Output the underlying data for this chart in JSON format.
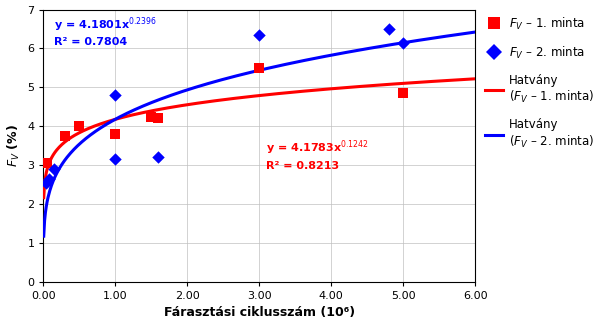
{
  "red_x": [
    0.05,
    0.3,
    0.5,
    1.0,
    1.5,
    1.6,
    3.0,
    5.0
  ],
  "red_y": [
    3.05,
    3.75,
    4.0,
    3.8,
    4.25,
    4.2,
    5.5,
    4.85
  ],
  "blue_x": [
    0.04,
    0.08,
    0.15,
    1.0,
    1.0,
    1.6,
    3.0,
    4.8,
    5.0
  ],
  "blue_y": [
    2.55,
    2.65,
    2.9,
    3.15,
    4.8,
    3.2,
    6.35,
    6.5,
    6.15
  ],
  "red_a": 4.1783,
  "red_b": 0.1242,
  "blue_a": 4.1801,
  "blue_b": 0.2396,
  "xlabel": "Fárasztási ciklusszám (10⁶)",
  "ylabel": "$F_V$ (%)",
  "xlim": [
    0,
    6.0
  ],
  "ylim": [
    0,
    7
  ],
  "xticks": [
    0.0,
    1.0,
    2.0,
    3.0,
    4.0,
    5.0,
    6.0
  ],
  "yticks": [
    0,
    1,
    2,
    3,
    4,
    5,
    6,
    7
  ],
  "xtick_labels": [
    "0.00",
    "1.00",
    "2.00",
    "3.00",
    "4.00",
    "5.00",
    "6.00"
  ],
  "ytick_labels": [
    "0",
    "1",
    "2",
    "3",
    "4",
    "5",
    "6",
    "7"
  ],
  "red_color": "#FF0000",
  "blue_color": "#0000FF",
  "grid_color": "#C0C0C0",
  "bg_color": "#FFFFFF",
  "blue_eq_x": 0.15,
  "blue_eq_y": 6.52,
  "blue_r2_y": 6.1,
  "red_eq_x": 3.1,
  "red_eq_y": 3.35,
  "red_r2_y": 2.9,
  "legend_fv1": "$F_V$ – 1. minta",
  "legend_fv2": "$F_V$ – 2. minta",
  "legend_hatv1": "Hatvány\n($F_V$ – 1. minta)",
  "legend_hatv2": "Hatvány\n($F_V$ – 2. minta)"
}
